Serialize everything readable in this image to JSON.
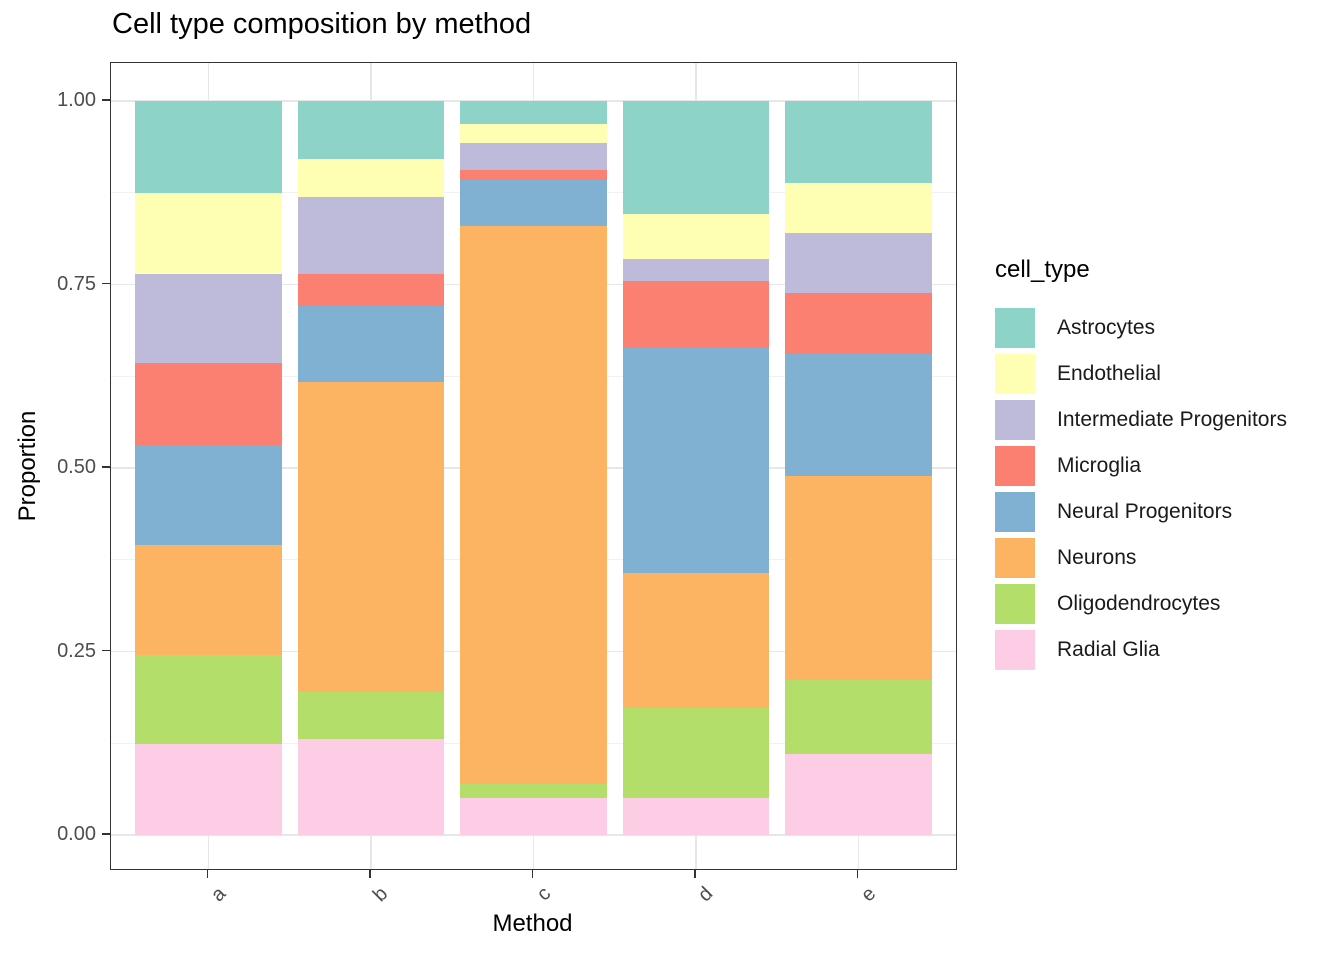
{
  "title": "Cell type composition by method",
  "axes": {
    "x": {
      "label": "Method"
    },
    "y": {
      "label": "Proportion"
    }
  },
  "legend": {
    "title": "cell_type",
    "position": "right",
    "entries": [
      {
        "label": "Astrocytes",
        "color": "#8DD3C7"
      },
      {
        "label": "Endothelial",
        "color": "#FFFFB3"
      },
      {
        "label": "Intermediate Progenitors",
        "color": "#BEBADA"
      },
      {
        "label": "Microglia",
        "color": "#FB8072"
      },
      {
        "label": "Neural Progenitors",
        "color": "#80B1D3"
      },
      {
        "label": "Neurons",
        "color": "#FDB462"
      },
      {
        "label": "Oligodendrocytes",
        "color": "#B3DE69"
      },
      {
        "label": "Radial Glia",
        "color": "#FCCDE5"
      }
    ]
  },
  "chart_data": {
    "type": "bar",
    "stacked": true,
    "stack_order": "first series at top",
    "title": "Cell type composition by method",
    "xlabel": "Method",
    "ylabel": "Proportion",
    "categories": [
      "a",
      "b",
      "c",
      "d",
      "e"
    ],
    "series": [
      {
        "name": "Astrocytes",
        "color": "#8DD3C7",
        "values": [
          0.126,
          0.079,
          0.031,
          0.154,
          0.112
        ]
      },
      {
        "name": "Endothelial",
        "color": "#FFFFB3",
        "values": [
          0.11,
          0.052,
          0.026,
          0.061,
          0.068
        ]
      },
      {
        "name": "Intermediate Progenitors",
        "color": "#BEBADA",
        "values": [
          0.121,
          0.105,
          0.037,
          0.03,
          0.081
        ]
      },
      {
        "name": "Microglia",
        "color": "#FB8072",
        "values": [
          0.111,
          0.043,
          0.014,
          0.091,
          0.084
        ]
      },
      {
        "name": "Neural Progenitors",
        "color": "#80B1D3",
        "values": [
          0.137,
          0.104,
          0.062,
          0.307,
          0.166
        ]
      },
      {
        "name": "Neurons",
        "color": "#FDB462",
        "values": [
          0.15,
          0.422,
          0.76,
          0.184,
          0.278
        ]
      },
      {
        "name": "Oligodendrocytes",
        "color": "#B3DE69",
        "values": [
          0.121,
          0.064,
          0.019,
          0.122,
          0.101
        ]
      },
      {
        "name": "Radial Glia",
        "color": "#FCCDE5",
        "values": [
          0.124,
          0.131,
          0.051,
          0.051,
          0.11
        ]
      }
    ],
    "ylim": [
      0,
      1
    ],
    "y_major_ticks": [
      {
        "v": 1.0,
        "label": "1.00"
      },
      {
        "v": 0.75,
        "label": "0.75"
      },
      {
        "v": 0.5,
        "label": "0.50"
      },
      {
        "v": 0.25,
        "label": "0.25"
      },
      {
        "v": 0.0,
        "label": "0.00"
      }
    ],
    "y_minor_gridlines": [
      0.875,
      0.625,
      0.375,
      0.125
    ],
    "grid": true,
    "legend_position": "right"
  }
}
